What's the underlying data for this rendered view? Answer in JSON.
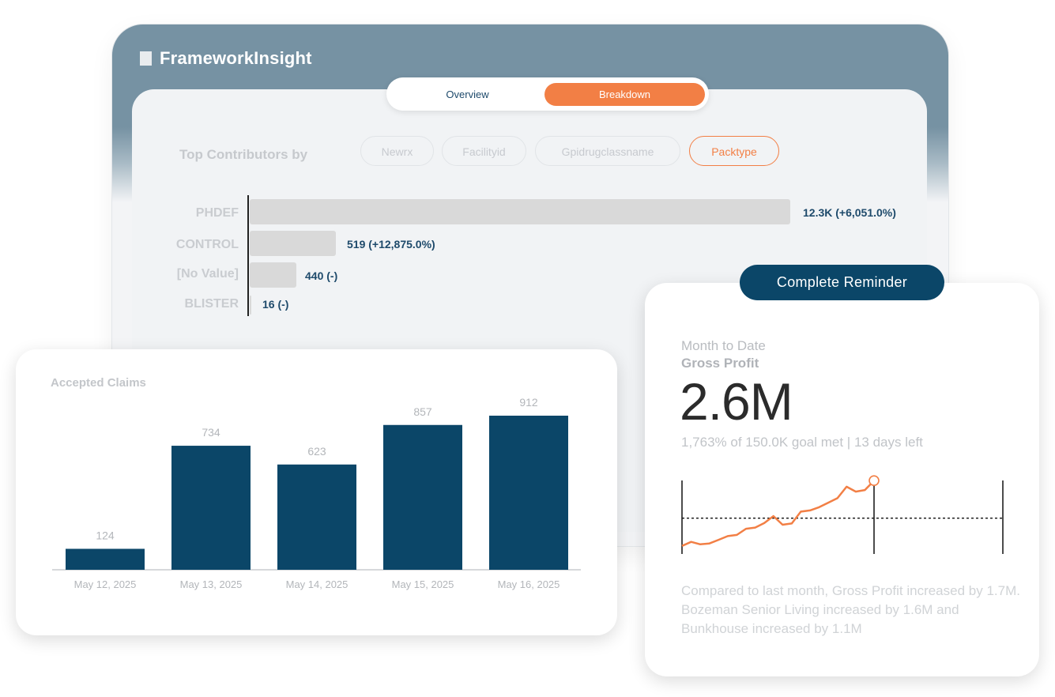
{
  "app": {
    "title": "FrameworkInsight"
  },
  "tabs": {
    "overview": "Overview",
    "breakdown": "Breakdown"
  },
  "breakdown": {
    "label": "Top Contributors by",
    "chips": [
      "Newrx",
      "Facilityid",
      "Gpidrugclassname",
      "Packtype"
    ],
    "active_chip": "Packtype",
    "rows": [
      {
        "label": "PHDEF",
        "value": 12300,
        "display": "12.3K (+6,051.0%)"
      },
      {
        "label": "CONTROL",
        "value": 519,
        "display": "519 (+12,875.0%)"
      },
      {
        "label": "[No Value]",
        "value": 440,
        "display": "440 (-)"
      },
      {
        "label": "BLISTER",
        "value": 16,
        "display": "16 (-)"
      }
    ]
  },
  "claims": {
    "title": "Accepted Claims",
    "chart_data": {
      "type": "bar",
      "title": "Accepted Claims",
      "categories": [
        "May 12, 2025",
        "May 13, 2025",
        "May 14, 2025",
        "May 15, 2025",
        "May 16, 2025"
      ],
      "values": [
        124,
        734,
        623,
        857,
        912
      ],
      "ylim": [
        0,
        912
      ],
      "color": "#0b4668"
    }
  },
  "reminder": {
    "label": "Complete Reminder"
  },
  "profit": {
    "period": "Month to Date",
    "metric": "Gross Profit",
    "value": "2.6M",
    "goal_text": "1,763% of 150.0K goal met | 13 days left",
    "chart_data": {
      "type": "line",
      "series": [
        {
          "values": [
            0.1,
            0.2,
            0.14,
            0.16,
            0.25,
            0.34,
            0.37,
            0.52,
            0.55,
            0.66,
            0.83,
            0.62,
            0.65,
            0.94,
            0.97,
            1.05,
            1.16,
            1.27,
            1.55,
            1.43,
            1.47,
            1.7
          ]
        }
      ],
      "goal": 0.78,
      "accent": "#f27f45"
    },
    "summary": "Compared to last month, Gross Profit increased by 1.7M. Bozeman Senior Living increased by 1.6M and Bunkhouse increased by 1.1M"
  }
}
